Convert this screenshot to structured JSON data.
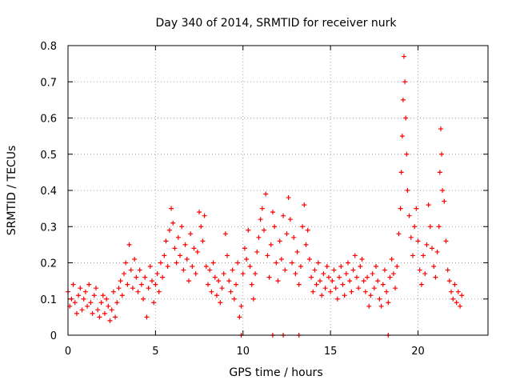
{
  "chart_data": {
    "type": "scatter",
    "title": "Day 340 of 2014, SRMTID for receiver nurk",
    "xlabel": "GPS time / hours",
    "ylabel": "SRMTID / TECUs",
    "xlim": [
      0,
      24
    ],
    "ylim": [
      0,
      0.8
    ],
    "xticks": [
      0,
      5,
      10,
      15,
      20
    ],
    "xtick_labels": [
      "0",
      "5",
      "10",
      "15",
      "20"
    ],
    "yticks": [
      0,
      0.1,
      0.2,
      0.3,
      0.4,
      0.5,
      0.6,
      0.7,
      0.8
    ],
    "ytick_labels": [
      "0",
      "0.1",
      "0.2",
      "0.3",
      "0.4",
      "0.5",
      "0.6",
      "0.7",
      "0.8"
    ],
    "grid": true,
    "marker": "+",
    "series": [
      {
        "name": "SRMTID",
        "color": "#ff0000",
        "points": [
          [
            0.0,
            0.12
          ],
          [
            0.1,
            0.08
          ],
          [
            0.2,
            0.1
          ],
          [
            0.3,
            0.14
          ],
          [
            0.4,
            0.09
          ],
          [
            0.5,
            0.06
          ],
          [
            0.6,
            0.11
          ],
          [
            0.7,
            0.13
          ],
          [
            0.8,
            0.07
          ],
          [
            0.9,
            0.1
          ],
          [
            1.0,
            0.12
          ],
          [
            1.1,
            0.08
          ],
          [
            1.2,
            0.14
          ],
          [
            1.3,
            0.09
          ],
          [
            1.4,
            0.06
          ],
          [
            1.5,
            0.11
          ],
          [
            1.6,
            0.13
          ],
          [
            1.7,
            0.07
          ],
          [
            1.8,
            0.05
          ],
          [
            1.9,
            0.09
          ],
          [
            2.0,
            0.11
          ],
          [
            2.1,
            0.06
          ],
          [
            2.2,
            0.1
          ],
          [
            2.3,
            0.08
          ],
          [
            2.4,
            0.04
          ],
          [
            2.5,
            0.07
          ],
          [
            2.6,
            0.12
          ],
          [
            2.7,
            0.05
          ],
          [
            2.8,
            0.09
          ],
          [
            2.9,
            0.13
          ],
          [
            3.0,
            0.15
          ],
          [
            3.1,
            0.11
          ],
          [
            3.2,
            0.17
          ],
          [
            3.3,
            0.2
          ],
          [
            3.4,
            0.14
          ],
          [
            3.5,
            0.25
          ],
          [
            3.6,
            0.18
          ],
          [
            3.7,
            0.13
          ],
          [
            3.8,
            0.21
          ],
          [
            3.9,
            0.16
          ],
          [
            4.0,
            0.12
          ],
          [
            4.1,
            0.18
          ],
          [
            4.2,
            0.14
          ],
          [
            4.3,
            0.1
          ],
          [
            4.4,
            0.16
          ],
          [
            4.5,
            0.05
          ],
          [
            4.6,
            0.13
          ],
          [
            4.7,
            0.19
          ],
          [
            4.8,
            0.15
          ],
          [
            4.9,
            0.09
          ],
          [
            5.0,
            0.14
          ],
          [
            5.1,
            0.17
          ],
          [
            5.2,
            0.12
          ],
          [
            5.3,
            0.2
          ],
          [
            5.4,
            0.16
          ],
          [
            5.5,
            0.22
          ],
          [
            5.6,
            0.26
          ],
          [
            5.7,
            0.19
          ],
          [
            5.8,
            0.29
          ],
          [
            5.9,
            0.35
          ],
          [
            6.0,
            0.31
          ],
          [
            6.1,
            0.24
          ],
          [
            6.2,
            0.2
          ],
          [
            6.3,
            0.27
          ],
          [
            6.4,
            0.22
          ],
          [
            6.5,
            0.3
          ],
          [
            6.6,
            0.18
          ],
          [
            6.7,
            0.25
          ],
          [
            6.8,
            0.21
          ],
          [
            6.9,
            0.15
          ],
          [
            7.0,
            0.28
          ],
          [
            7.1,
            0.19
          ],
          [
            7.2,
            0.24
          ],
          [
            7.3,
            0.17
          ],
          [
            7.4,
            0.23
          ],
          [
            7.5,
            0.34
          ],
          [
            7.6,
            0.3
          ],
          [
            7.7,
            0.26
          ],
          [
            7.8,
            0.33
          ],
          [
            7.9,
            0.19
          ],
          [
            8.0,
            0.14
          ],
          [
            8.1,
            0.18
          ],
          [
            8.2,
            0.12
          ],
          [
            8.3,
            0.2
          ],
          [
            8.4,
            0.16
          ],
          [
            8.5,
            0.11
          ],
          [
            8.6,
            0.15
          ],
          [
            8.7,
            0.09
          ],
          [
            8.8,
            0.13
          ],
          [
            8.9,
            0.17
          ],
          [
            9.0,
            0.28
          ],
          [
            9.1,
            0.22
          ],
          [
            9.2,
            0.15
          ],
          [
            9.3,
            0.12
          ],
          [
            9.4,
            0.18
          ],
          [
            9.5,
            0.1
          ],
          [
            9.6,
            0.14
          ],
          [
            9.7,
            0.2
          ],
          [
            9.8,
            0.05
          ],
          [
            9.9,
            0.08
          ],
          [
            10.0,
            0.17
          ],
          [
            10.1,
            0.24
          ],
          [
            10.2,
            0.21
          ],
          [
            10.3,
            0.29
          ],
          [
            10.4,
            0.19
          ],
          [
            10.5,
            0.14
          ],
          [
            10.6,
            0.1
          ],
          [
            10.7,
            0.17
          ],
          [
            10.8,
            0.23
          ],
          [
            10.9,
            0.27
          ],
          [
            11.0,
            0.32
          ],
          [
            11.1,
            0.35
          ],
          [
            11.2,
            0.29
          ],
          [
            11.3,
            0.39
          ],
          [
            11.4,
            0.22
          ],
          [
            11.5,
            0.16
          ],
          [
            11.6,
            0.25
          ],
          [
            11.7,
            0.34
          ],
          [
            11.8,
            0.3
          ],
          [
            11.9,
            0.2
          ],
          [
            12.0,
            0.15
          ],
          [
            12.1,
            0.26
          ],
          [
            12.2,
            0.21
          ],
          [
            12.3,
            0.33
          ],
          [
            12.4,
            0.18
          ],
          [
            12.5,
            0.28
          ],
          [
            12.6,
            0.38
          ],
          [
            12.7,
            0.32
          ],
          [
            12.8,
            0.2
          ],
          [
            12.9,
            0.27
          ],
          [
            13.0,
            0.17
          ],
          [
            13.1,
            0.23
          ],
          [
            13.2,
            0.14
          ],
          [
            13.3,
            0.19
          ],
          [
            13.4,
            0.3
          ],
          [
            13.5,
            0.36
          ],
          [
            13.6,
            0.25
          ],
          [
            13.7,
            0.29
          ],
          [
            13.8,
            0.21
          ],
          [
            13.9,
            0.16
          ],
          [
            14.0,
            0.12
          ],
          [
            14.1,
            0.18
          ],
          [
            14.2,
            0.14
          ],
          [
            14.3,
            0.2
          ],
          [
            14.4,
            0.15
          ],
          [
            14.5,
            0.11
          ],
          [
            14.6,
            0.17
          ],
          [
            14.7,
            0.13
          ],
          [
            14.8,
            0.19
          ],
          [
            14.9,
            0.16
          ],
          [
            15.0,
            0.12
          ],
          [
            15.1,
            0.15
          ],
          [
            15.2,
            0.18
          ],
          [
            15.3,
            0.13
          ],
          [
            15.4,
            0.1
          ],
          [
            15.5,
            0.16
          ],
          [
            15.6,
            0.19
          ],
          [
            15.7,
            0.14
          ],
          [
            15.8,
            0.11
          ],
          [
            15.9,
            0.17
          ],
          [
            16.0,
            0.2
          ],
          [
            16.1,
            0.15
          ],
          [
            16.2,
            0.12
          ],
          [
            16.3,
            0.18
          ],
          [
            16.4,
            0.22
          ],
          [
            16.5,
            0.16
          ],
          [
            16.6,
            0.13
          ],
          [
            16.7,
            0.19
          ],
          [
            16.8,
            0.21
          ],
          [
            16.9,
            0.15
          ],
          [
            17.0,
            0.12
          ],
          [
            17.1,
            0.16
          ],
          [
            17.2,
            0.08
          ],
          [
            17.3,
            0.11
          ],
          [
            17.4,
            0.17
          ],
          [
            17.5,
            0.13
          ],
          [
            17.6,
            0.19
          ],
          [
            17.7,
            0.15
          ],
          [
            17.8,
            0.1
          ],
          [
            17.9,
            0.08
          ],
          [
            18.0,
            0.14
          ],
          [
            18.1,
            0.18
          ],
          [
            18.2,
            0.12
          ],
          [
            18.3,
            0.09
          ],
          [
            18.4,
            0.16
          ],
          [
            18.5,
            0.21
          ],
          [
            18.6,
            0.17
          ],
          [
            18.7,
            0.13
          ],
          [
            18.8,
            0.19
          ],
          [
            18.9,
            0.28
          ],
          [
            19.0,
            0.35
          ],
          [
            19.05,
            0.45
          ],
          [
            19.1,
            0.55
          ],
          [
            19.15,
            0.65
          ],
          [
            19.2,
            0.77
          ],
          [
            19.25,
            0.7
          ],
          [
            19.3,
            0.6
          ],
          [
            19.35,
            0.5
          ],
          [
            19.4,
            0.4
          ],
          [
            19.5,
            0.33
          ],
          [
            19.6,
            0.27
          ],
          [
            19.7,
            0.22
          ],
          [
            19.8,
            0.3
          ],
          [
            19.9,
            0.35
          ],
          [
            20.0,
            0.26
          ],
          [
            20.1,
            0.18
          ],
          [
            20.2,
            0.14
          ],
          [
            20.3,
            0.22
          ],
          [
            20.4,
            0.17
          ],
          [
            20.5,
            0.25
          ],
          [
            20.6,
            0.36
          ],
          [
            20.7,
            0.3
          ],
          [
            20.8,
            0.24
          ],
          [
            20.9,
            0.19
          ],
          [
            21.0,
            0.16
          ],
          [
            21.1,
            0.23
          ],
          [
            21.2,
            0.3
          ],
          [
            21.25,
            0.45
          ],
          [
            21.3,
            0.57
          ],
          [
            21.35,
            0.5
          ],
          [
            21.4,
            0.4
          ],
          [
            21.5,
            0.37
          ],
          [
            21.6,
            0.26
          ],
          [
            21.7,
            0.18
          ],
          [
            21.8,
            0.15
          ],
          [
            21.9,
            0.12
          ],
          [
            22.0,
            0.1
          ],
          [
            22.1,
            0.14
          ],
          [
            22.2,
            0.09
          ],
          [
            22.3,
            0.12
          ],
          [
            22.4,
            0.08
          ],
          [
            22.5,
            0.11
          ],
          [
            9.9,
            0.0
          ],
          [
            11.7,
            0.0
          ],
          [
            12.3,
            0.0
          ],
          [
            13.2,
            0.0
          ],
          [
            18.3,
            0.0
          ]
        ]
      }
    ]
  }
}
